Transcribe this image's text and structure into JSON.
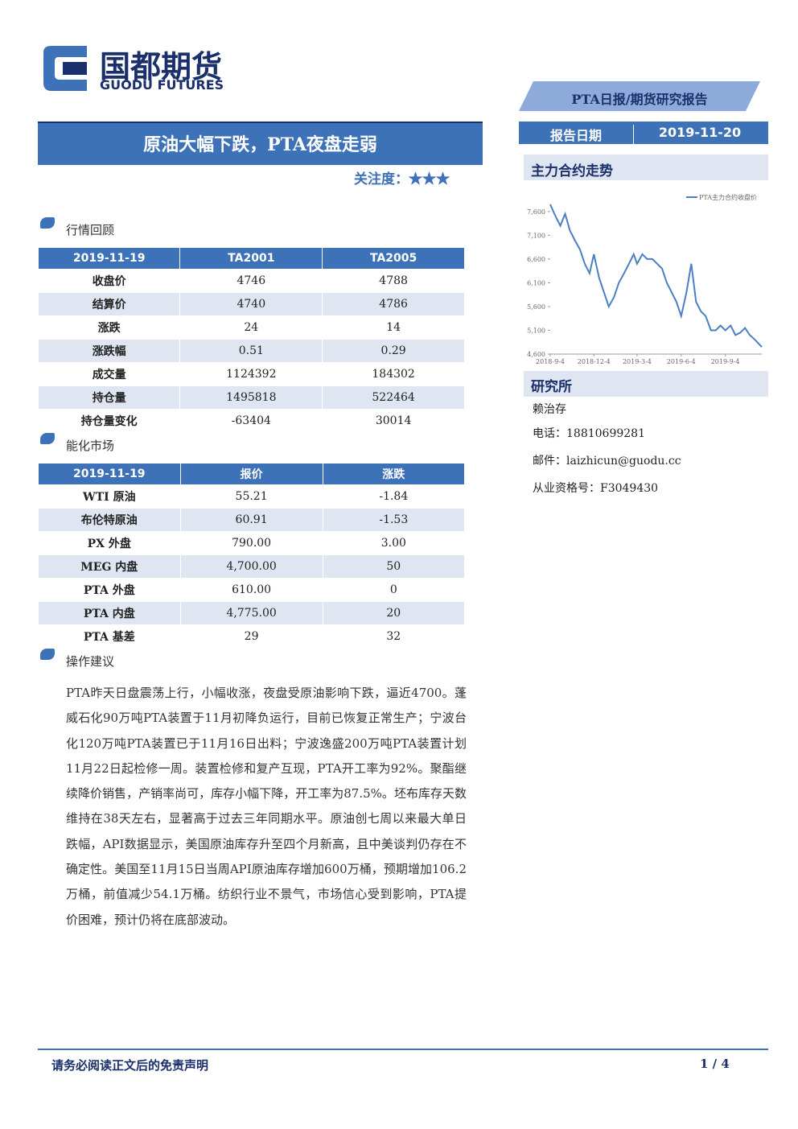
{
  "header": {
    "logo_cn": "国都期货",
    "logo_en": "GUODU FUTURES",
    "report_type": "PTA日报/期货研究报告",
    "date_label": "报告日期",
    "date": "2019-11-20",
    "title": "原油大幅下跌，PTA夜盘走弱",
    "attention_label": "关注度：",
    "attention_stars": "★★★"
  },
  "sections": {
    "market_review": "行情回顾",
    "energy_market": "能化市场",
    "advice": "操作建议"
  },
  "table1": {
    "header": [
      "2019-11-19",
      "TA2001",
      "TA2005"
    ],
    "rows": [
      [
        "收盘价",
        "4746",
        "4788"
      ],
      [
        "结算价",
        "4740",
        "4786"
      ],
      [
        "涨跌",
        "24",
        "14"
      ],
      [
        "涨跌幅",
        "0.51",
        "0.29"
      ],
      [
        "成交量",
        "1124392",
        "184302"
      ],
      [
        "持仓量",
        "1495818",
        "522464"
      ],
      [
        "持仓量变化",
        "-63404",
        "30014"
      ]
    ]
  },
  "table2": {
    "header": [
      "2019-11-19",
      "报价",
      "涨跌"
    ],
    "rows": [
      [
        "WTI 原油",
        "55.21",
        "-1.84"
      ],
      [
        "布伦特原油",
        "60.91",
        "-1.53"
      ],
      [
        "PX 外盘",
        "790.00",
        "3.00"
      ],
      [
        "MEG 内盘",
        "4,700.00",
        "50"
      ],
      [
        "PTA 外盘",
        "610.00",
        "0"
      ],
      [
        "PTA 内盘",
        "4,775.00",
        "20"
      ],
      [
        "PTA 基差",
        "29",
        "32"
      ]
    ]
  },
  "advice_text": "PTA昨天日盘震荡上行，小幅收涨，夜盘受原油影响下跌，逼近4700。蓬威石化90万吨PTA装置于11月初降负运行，目前已恢复正常生产；宁波台化120万吨PTA装置已于11月16日出料；宁波逸盛200万吨PTA装置计划11月22日起检修一周。装置检修和复产互现，PTA开工率为92%。聚酯继续降价销售，产销率尚可，库存小幅下降，开工率为87.5%。坯布库存天数维持在38天左右，显著高于过去三年同期水平。原油创七周以来最大单日跌幅，API数据显示，美国原油库存升至四个月新高，且中美谈判仍存在不确定性。美国至11月15日当周API原油库存增加600万桶，预期增加106.2万桶，前值减少54.1万桶。纺织行业不景气，市场信心受到影响，PTA提价困难，预计仍将在底部波动。",
  "sidebar": {
    "chart_heading": "主力合约走势",
    "research_heading": "研究所",
    "analyst": "赖治存",
    "phone": "电话：18810699281",
    "email": "邮件：laizhicun@guodu.cc",
    "license": "从业资格号：F3049430"
  },
  "footer": {
    "disclaimer": "请务必阅读正文后的免责声明",
    "page": "1 / 4"
  },
  "chart_data": {
    "type": "line",
    "series": [
      {
        "name": "PTA主力合约收盘价",
        "color": "#4a7fc1",
        "x": [
          "2018-9-4",
          "2018-9-15",
          "2018-9-25",
          "2018-10-5",
          "2018-10-15",
          "2018-10-25",
          "2018-11-5",
          "2018-11-15",
          "2018-11-25",
          "2018-12-4",
          "2018-12-15",
          "2018-12-25",
          "2019-1-4",
          "2019-1-15",
          "2019-1-25",
          "2019-2-5",
          "2019-2-15",
          "2019-2-25",
          "2019-3-4",
          "2019-3-15",
          "2019-3-25",
          "2019-4-5",
          "2019-4-15",
          "2019-4-25",
          "2019-5-5",
          "2019-5-15",
          "2019-5-25",
          "2019-6-4",
          "2019-6-15",
          "2019-6-25",
          "2019-7-5",
          "2019-7-15",
          "2019-7-25",
          "2019-8-5",
          "2019-8-15",
          "2019-8-25",
          "2019-9-4",
          "2019-9-15",
          "2019-9-25",
          "2019-10-5",
          "2019-10-15",
          "2019-10-25",
          "2019-11-5",
          "2019-11-19"
        ],
        "values": [
          7750,
          7500,
          7300,
          7550,
          7200,
          7000,
          6800,
          6500,
          6300,
          6700,
          6200,
          5900,
          5600,
          5800,
          6100,
          6300,
          6500,
          6700,
          6500,
          6700,
          6600,
          6600,
          6500,
          6400,
          6100,
          5900,
          5700,
          5400,
          5900,
          6500,
          5700,
          5500,
          5400,
          5100,
          5100,
          5200,
          5100,
          5200,
          5000,
          5050,
          5150,
          5000,
          4900,
          4750
        ]
      }
    ],
    "xlim": [
      "2018-9-4",
      "2019-11-19"
    ],
    "xticks": [
      "2018-9-4",
      "2018-12-4",
      "2019-3-4",
      "2019-6-4",
      "2019-9-4"
    ],
    "ylim": [
      4600,
      7800
    ],
    "yticks": [
      {
        "value": 4600,
        "label": "4,600"
      },
      {
        "value": 5100,
        "label": "5,100"
      },
      {
        "value": 5600,
        "label": "5,600"
      },
      {
        "value": 6100,
        "label": "6,100"
      },
      {
        "value": 6600,
        "label": "6,600"
      },
      {
        "value": 7100,
        "label": "7,100"
      },
      {
        "value": 7600,
        "label": "7,600"
      }
    ],
    "grid": false,
    "legend": "top-right"
  }
}
